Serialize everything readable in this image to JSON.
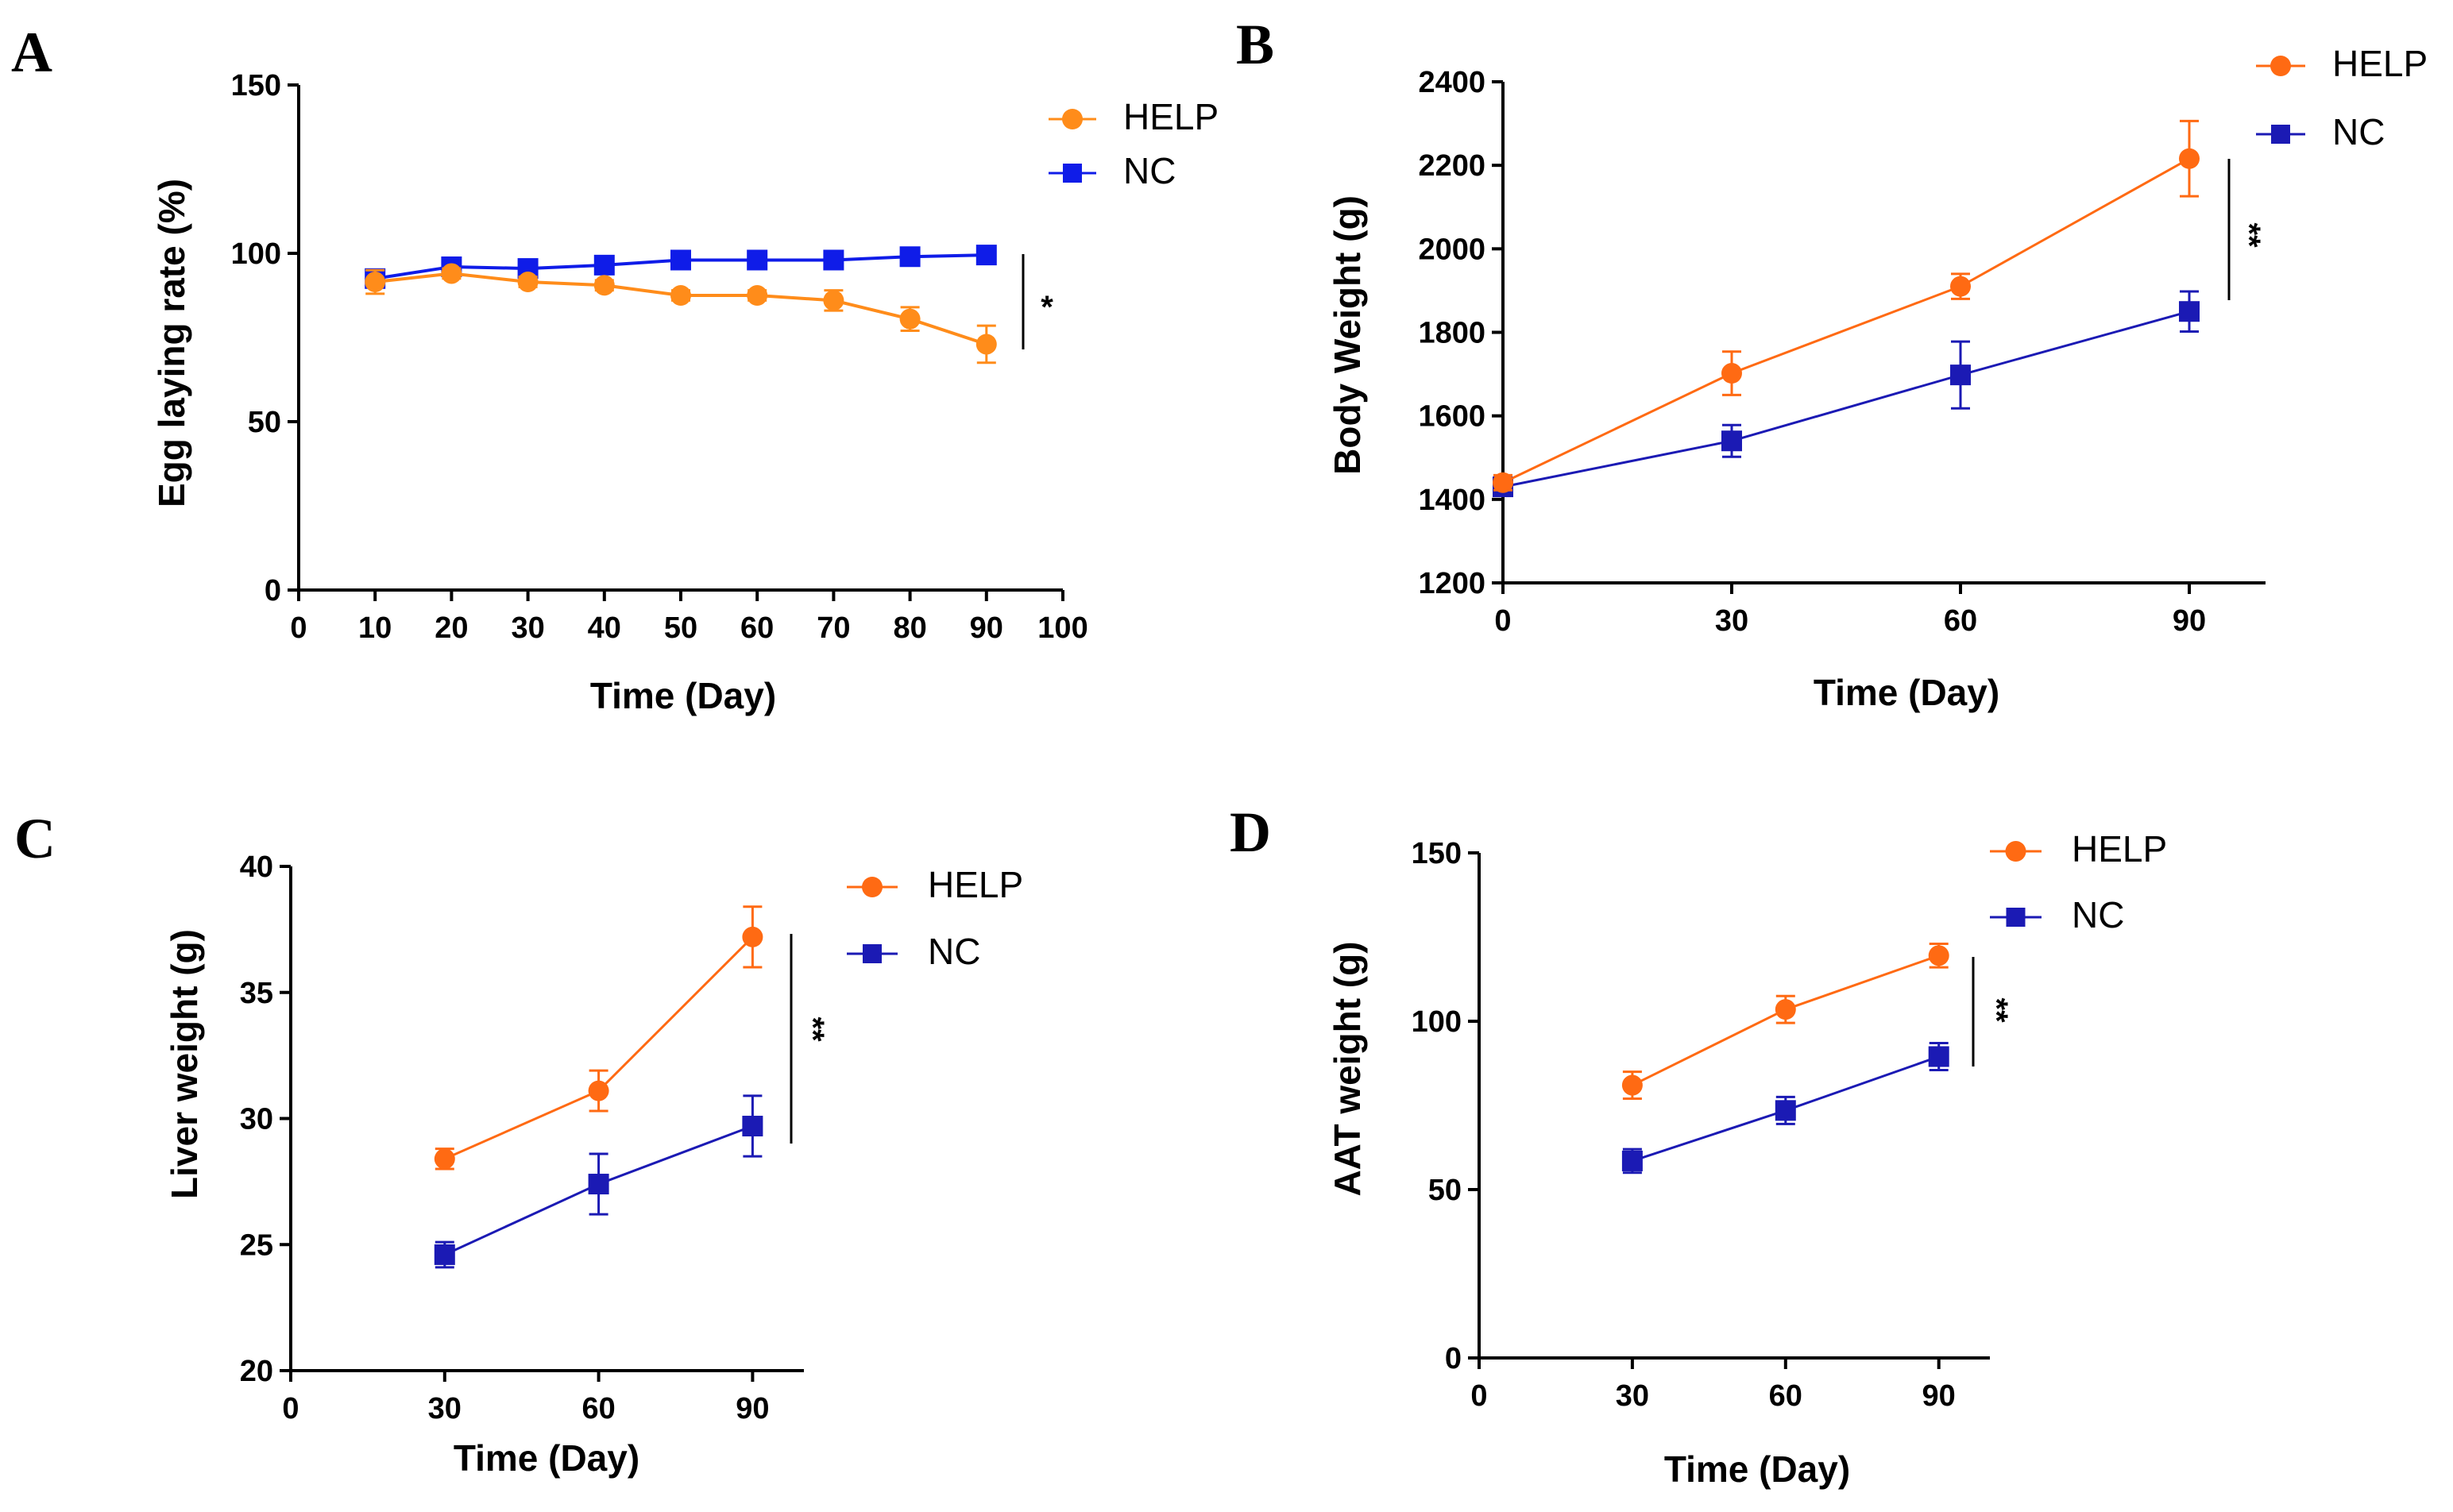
{
  "colors": {
    "orange_a": "#FF8C1A",
    "blue_a": "#0F1CE8",
    "orange": "#FF6A13",
    "blue": "#1B1AB4",
    "axis": "#000000"
  },
  "chart_data": [
    {
      "panel": "A",
      "type": "line",
      "xlabel": "Time (Day)",
      "ylabel": "Egg laying rate (%)",
      "xlim": [
        0,
        100
      ],
      "ylim": [
        0,
        150
      ],
      "xticks": [
        0,
        10,
        20,
        30,
        40,
        50,
        60,
        70,
        80,
        90,
        100
      ],
      "yticks": [
        0,
        50,
        100,
        150
      ],
      "legend": [
        "HELP",
        "NC"
      ],
      "significance": "*",
      "series": [
        {
          "name": "HELP",
          "marker": "circle",
          "color": "#FF8C1A",
          "x": [
            10,
            20,
            30,
            40,
            50,
            60,
            70,
            80,
            90
          ],
          "y": [
            91.5,
            94,
            91.5,
            90.5,
            87.5,
            87.5,
            86,
            80.5,
            73
          ],
          "err": [
            3.5,
            1.5,
            1.5,
            1.5,
            1.5,
            1.5,
            3,
            3.5,
            5.5
          ]
        },
        {
          "name": "NC",
          "marker": "square",
          "color": "#0F1CE8",
          "x": [
            10,
            20,
            30,
            40,
            50,
            60,
            70,
            80,
            90
          ],
          "y": [
            92.5,
            96,
            95.5,
            96.5,
            98,
            98,
            98,
            99,
            99.5
          ],
          "err": [
            1,
            1,
            1,
            1,
            1,
            1,
            1,
            1,
            1
          ]
        }
      ]
    },
    {
      "panel": "B",
      "type": "line",
      "xlabel": "Time (Day)",
      "ylabel": "Body Weight (g)",
      "xlim": [
        0,
        100
      ],
      "ylim": [
        1200,
        2400
      ],
      "xticks": [
        0,
        30,
        60,
        90
      ],
      "yticks": [
        1200,
        1400,
        1600,
        1800,
        2000,
        2200,
        2400
      ],
      "legend": [
        "HELP",
        "NC"
      ],
      "significance": "**",
      "series": [
        {
          "name": "HELP",
          "marker": "circle",
          "color": "#FF6A13",
          "x": [
            0,
            30,
            60,
            90
          ],
          "y": [
            1440,
            1702,
            1910,
            2216
          ],
          "err": [
            18,
            52,
            30,
            90
          ]
        },
        {
          "name": "NC",
          "marker": "square",
          "color": "#1B1AB4",
          "x": [
            0,
            30,
            60,
            90
          ],
          "y": [
            1430,
            1540,
            1698,
            1850
          ],
          "err": [
            18,
            38,
            80,
            48
          ]
        }
      ]
    },
    {
      "panel": "C",
      "type": "line",
      "xlabel": "Time (Day)",
      "ylabel": "Liver weight (g)",
      "xlim": [
        0,
        100
      ],
      "ylim": [
        20,
        40
      ],
      "xticks": [
        0,
        30,
        60,
        90
      ],
      "yticks": [
        20,
        25,
        30,
        35,
        40
      ],
      "legend": [
        "HELP",
        "NC"
      ],
      "significance": "**",
      "series": [
        {
          "name": "HELP",
          "marker": "circle",
          "color": "#FF6A13",
          "x": [
            30,
            60,
            90
          ],
          "y": [
            28.4,
            31.1,
            37.2
          ],
          "err": [
            0.4,
            0.8,
            1.2
          ]
        },
        {
          "name": "NC",
          "marker": "square",
          "color": "#1B1AB4",
          "x": [
            30,
            60,
            90
          ],
          "y": [
            24.6,
            27.4,
            29.7
          ],
          "err": [
            0.5,
            1.2,
            1.2
          ]
        }
      ]
    },
    {
      "panel": "D",
      "type": "line",
      "xlabel": "Time (Day)",
      "ylabel": "AAT weight (g)",
      "xlim": [
        0,
        100
      ],
      "ylim": [
        0,
        150
      ],
      "xticks": [
        0,
        30,
        60,
        90
      ],
      "yticks": [
        0,
        50,
        100,
        150
      ],
      "legend": [
        "HELP",
        "NC"
      ],
      "significance": "**",
      "series": [
        {
          "name": "HELP",
          "marker": "circle",
          "color": "#FF6A13",
          "x": [
            30,
            60,
            90
          ],
          "y": [
            81,
            103.5,
            119.5
          ],
          "err": [
            4,
            4,
            3.5
          ]
        },
        {
          "name": "NC",
          "marker": "square",
          "color": "#1B1AB4",
          "x": [
            30,
            60,
            90
          ],
          "y": [
            58.5,
            73.5,
            89.5
          ],
          "err": [
            3.5,
            4,
            4
          ]
        }
      ]
    }
  ]
}
